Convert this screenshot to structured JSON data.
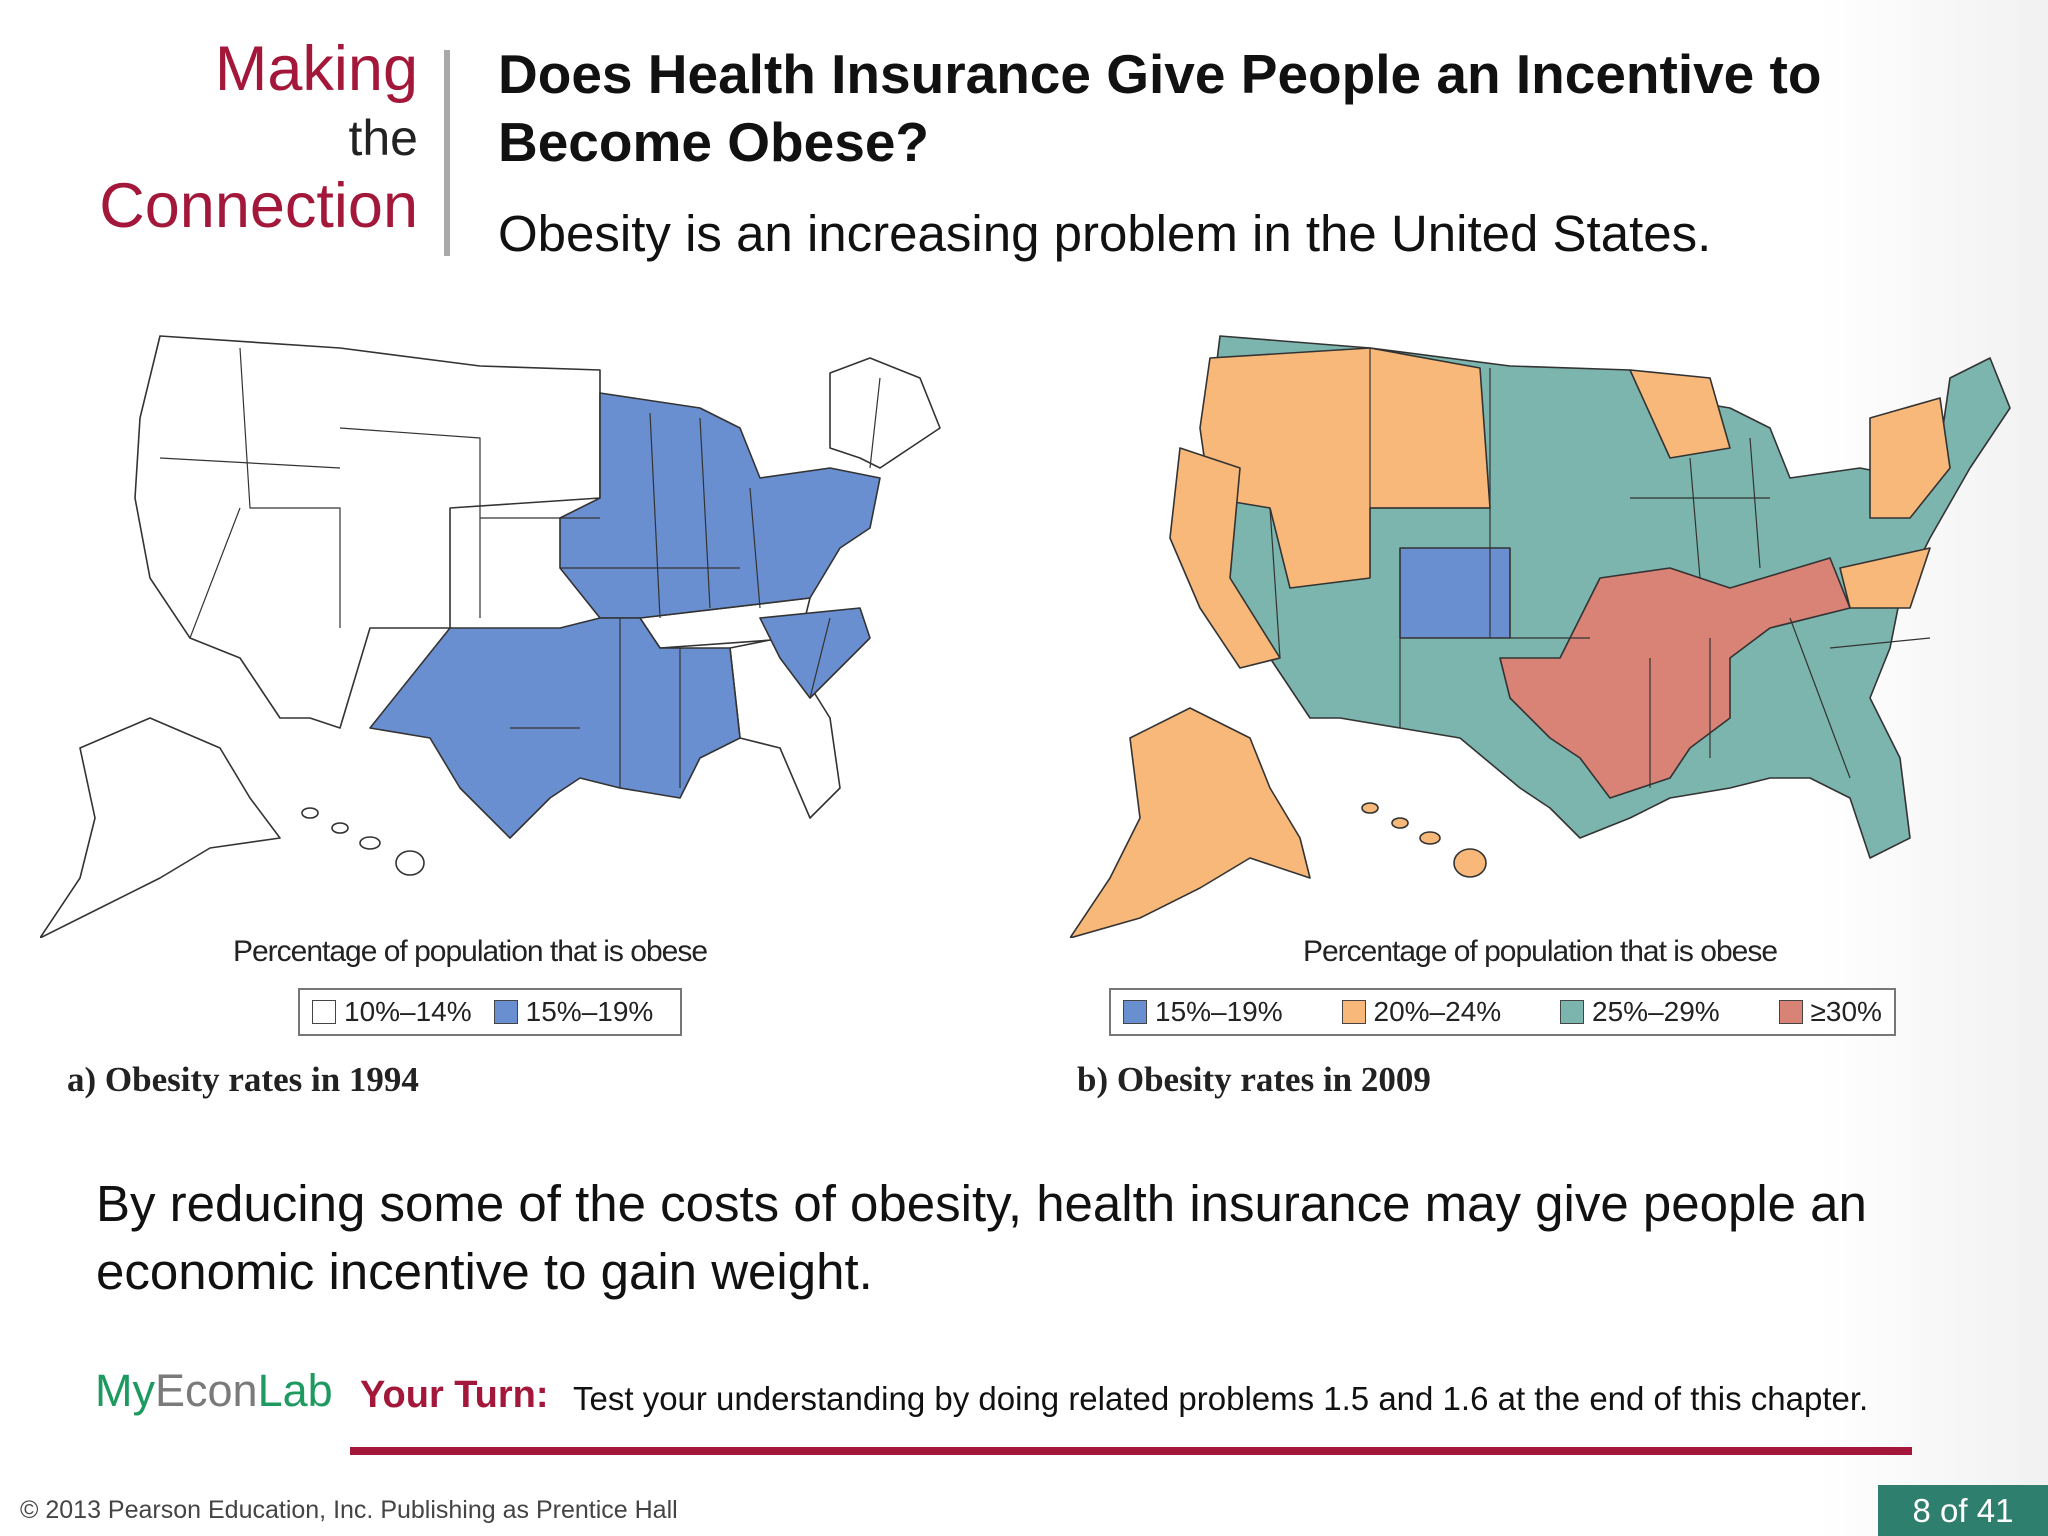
{
  "header": {
    "making": "Making",
    "the": "the",
    "connection": "Connection",
    "title": "Does Health Insurance Give People an Incentive to Become Obese?",
    "subtitle": "Obesity is an increasing problem in the United States."
  },
  "figure_a": {
    "legend_title": "Percentage of population that is obese",
    "legend": [
      {
        "label": "10%–14%",
        "color": "#ffffff"
      },
      {
        "label": "15%–19%",
        "color": "#6a8fd0"
      }
    ],
    "caption": "a) Obesity rates in 1994"
  },
  "figure_b": {
    "legend_title": "Percentage of population that is obese",
    "legend": [
      {
        "label": "15%–19%",
        "color": "#6a8fd0"
      },
      {
        "label": "20%–24%",
        "color": "#f8b87a"
      },
      {
        "label": "25%–29%",
        "color": "#7cb5ad"
      },
      {
        "label": "≥30%",
        "color": "#d98276"
      }
    ],
    "caption": "b) Obesity rates in 2009"
  },
  "body": {
    "text": "By reducing some of the costs of obesity, health insurance may give people an economic incentive to gain weight."
  },
  "myeconlab": {
    "my": "My",
    "econ": "Econ",
    "lab": "Lab",
    "your_turn_label": "Your Turn:",
    "your_turn_text": "Test your understanding by doing related problems 1.5 and 1.6 at the end of this chapter."
  },
  "footer": {
    "copyright": "© 2013 Pearson Education, Inc. Publishing as Prentice Hall",
    "page": "8 of 41"
  },
  "colors": {
    "accent": "#a3183a",
    "blue": "#6a8fd0",
    "orange": "#f8b87a",
    "teal": "#7cb5ad",
    "red": "#d98276"
  }
}
